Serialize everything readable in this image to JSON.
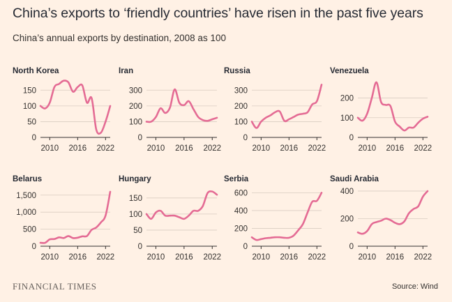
{
  "title": "China’s exports to ‘friendly countries’ have risen in the past five years",
  "subtitle": "China’s annual exports by destination, 2008 as 100",
  "footer": {
    "brand": "FINANCIAL TIMES",
    "source": "Source: Wind"
  },
  "colors": {
    "line": "#e46b94",
    "grid": "#d9ccc1",
    "axis": "#33302e",
    "background": "#fff1e5"
  },
  "chart_data": [
    {
      "type": "line",
      "title": "North Korea",
      "x": [
        2008,
        2009,
        2010,
        2011,
        2012,
        2013,
        2014,
        2015,
        2016,
        2017,
        2018,
        2019,
        2020,
        2021,
        2022,
        2023
      ],
      "y": [
        100,
        92,
        110,
        160,
        170,
        180,
        175,
        145,
        160,
        165,
        110,
        125,
        25,
        15,
        50,
        100
      ],
      "ylim": [
        0,
        175
      ],
      "yticks": [
        0,
        50,
        100,
        150
      ],
      "ytick_labels": [
        "0",
        "50",
        "100",
        "150"
      ],
      "xticks": [
        2010,
        2016,
        2022
      ],
      "xtick_labels": [
        "2010",
        "2016",
        "2022"
      ],
      "xlim": [
        2008,
        2023
      ]
    },
    {
      "type": "line",
      "title": "Iran",
      "x": [
        2008,
        2009,
        2010,
        2011,
        2012,
        2013,
        2014,
        2015,
        2016,
        2017,
        2018,
        2019,
        2020,
        2021,
        2022,
        2023
      ],
      "y": [
        100,
        100,
        130,
        185,
        155,
        190,
        305,
        220,
        205,
        230,
        180,
        130,
        110,
        105,
        115,
        125
      ],
      "ylim": [
        0,
        350
      ],
      "yticks": [
        0,
        100,
        200,
        300
      ],
      "ytick_labels": [
        "0",
        "100",
        "200",
        "300"
      ],
      "xticks": [
        2010,
        2016,
        2022
      ],
      "xtick_labels": [
        "2010",
        "2016",
        "2022"
      ],
      "xlim": [
        2008,
        2023
      ]
    },
    {
      "type": "line",
      "title": "Russia",
      "x": [
        2008,
        2009,
        2010,
        2011,
        2012,
        2013,
        2014,
        2015,
        2016,
        2017,
        2018,
        2019,
        2020,
        2021,
        2022,
        2023
      ],
      "y": [
        100,
        60,
        100,
        125,
        140,
        160,
        165,
        105,
        115,
        130,
        145,
        150,
        160,
        210,
        230,
        335
      ],
      "ylim": [
        0,
        350
      ],
      "yticks": [
        0,
        100,
        200,
        300
      ],
      "ytick_labels": [
        "0",
        "100",
        "200",
        "300"
      ],
      "xticks": [
        2010,
        2016,
        2022
      ],
      "xtick_labels": [
        "2010",
        "2016",
        "2022"
      ],
      "xlim": [
        2008,
        2023
      ]
    },
    {
      "type": "line",
      "title": "Venezuela",
      "x": [
        2008,
        2009,
        2010,
        2011,
        2012,
        2013,
        2014,
        2015,
        2016,
        2017,
        2018,
        2019,
        2020,
        2021,
        2022,
        2023
      ],
      "y": [
        100,
        85,
        120,
        200,
        280,
        180,
        165,
        160,
        80,
        55,
        35,
        50,
        50,
        75,
        95,
        105
      ],
      "ylim": [
        0,
        280
      ],
      "yticks": [
        0,
        100,
        200
      ],
      "ytick_labels": [
        "0",
        "100",
        "200"
      ],
      "xticks": [
        2010,
        2016,
        2022
      ],
      "xtick_labels": [
        "2010",
        "2016",
        "2022"
      ],
      "xlim": [
        2008,
        2023
      ]
    },
    {
      "type": "line",
      "title": "Belarus",
      "x": [
        2008,
        2009,
        2010,
        2011,
        2012,
        2013,
        2014,
        2015,
        2016,
        2017,
        2018,
        2019,
        2020,
        2021,
        2022,
        2023
      ],
      "y": [
        100,
        100,
        200,
        210,
        260,
        240,
        300,
        240,
        250,
        290,
        300,
        480,
        550,
        700,
        900,
        1600
      ],
      "ylim": [
        0,
        1700
      ],
      "yticks": [
        0,
        500,
        1000,
        1500
      ],
      "ytick_labels": [
        "0",
        "500",
        "1,000",
        "1,500"
      ],
      "xticks": [
        2010,
        2016,
        2022
      ],
      "xtick_labels": [
        "2010",
        "2016",
        "2022"
      ],
      "xlim": [
        2008,
        2023
      ]
    },
    {
      "type": "line",
      "title": "Hungary",
      "x": [
        2008,
        2009,
        2010,
        2011,
        2012,
        2013,
        2014,
        2015,
        2016,
        2017,
        2018,
        2019,
        2020,
        2021,
        2022,
        2023
      ],
      "y": [
        100,
        85,
        105,
        110,
        95,
        95,
        95,
        90,
        85,
        95,
        110,
        110,
        125,
        165,
        170,
        160
      ],
      "ylim": [
        0,
        180
      ],
      "yticks": [
        0,
        50,
        100,
        150
      ],
      "ytick_labels": [
        "0",
        "50",
        "100",
        "150"
      ],
      "xticks": [
        2010,
        2016,
        2022
      ],
      "xtick_labels": [
        "2010",
        "2016",
        "2022"
      ],
      "xlim": [
        2008,
        2023
      ]
    },
    {
      "type": "line",
      "title": "Serbia",
      "x": [
        2008,
        2009,
        2010,
        2011,
        2012,
        2013,
        2014,
        2015,
        2016,
        2017,
        2018,
        2019,
        2020,
        2021,
        2022,
        2023
      ],
      "y": [
        100,
        70,
        80,
        90,
        95,
        100,
        100,
        95,
        95,
        120,
        180,
        250,
        380,
        500,
        510,
        600
      ],
      "ylim": [
        0,
        650
      ],
      "yticks": [
        0,
        200,
        400,
        600
      ],
      "ytick_labels": [
        "0",
        "200",
        "400",
        "600"
      ],
      "xticks": [
        2010,
        2016,
        2022
      ],
      "xtick_labels": [
        "2010",
        "2016",
        "2022"
      ],
      "xlim": [
        2008,
        2023
      ]
    },
    {
      "type": "line",
      "title": "Saudi Arabia",
      "x": [
        2008,
        2009,
        2010,
        2011,
        2012,
        2013,
        2014,
        2015,
        2016,
        2017,
        2018,
        2019,
        2020,
        2021,
        2022,
        2023
      ],
      "y": [
        100,
        90,
        110,
        160,
        175,
        185,
        200,
        190,
        170,
        160,
        180,
        240,
        270,
        290,
        360,
        400
      ],
      "ylim": [
        0,
        420
      ],
      "yticks": [
        0,
        200,
        400
      ],
      "ytick_labels": [
        "0",
        "200",
        "400"
      ],
      "xticks": [
        2010,
        2016,
        2022
      ],
      "xtick_labels": [
        "2010",
        "2016",
        "2022"
      ],
      "xlim": [
        2008,
        2023
      ]
    }
  ]
}
